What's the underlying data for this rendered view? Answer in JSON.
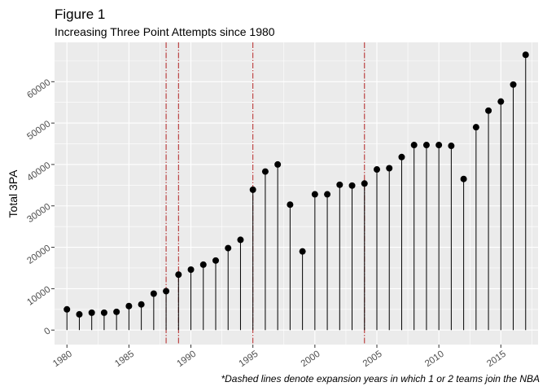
{
  "chart_data": {
    "type": "lollipop",
    "title": "Figure 1",
    "subtitle": "Increasing Three Point Attempts since 1980",
    "xlabel": "",
    "ylabel": "Total 3PA",
    "caption": "*Dashed lines denote expansion years in which 1 or 2 teams join the NBA",
    "x_ticks": [
      1980,
      1985,
      1990,
      1995,
      2000,
      2005,
      2010,
      2015
    ],
    "y_ticks": [
      0,
      10000,
      20000,
      30000,
      40000,
      50000,
      60000
    ],
    "xlim": [
      1979.0,
      2018.0
    ],
    "ylim": [
      -3500,
      69500
    ],
    "grid": true,
    "expansion_years": [
      1988,
      1989,
      1995,
      2004
    ],
    "colors": {
      "panel": "#ebebeb",
      "grid": "#ffffff",
      "point": "#000000",
      "vline": "#b22222"
    },
    "series": [
      {
        "x": [
          1980,
          1981,
          1982,
          1983,
          1984,
          1985,
          1986,
          1987,
          1988,
          1989,
          1990,
          1991,
          1992,
          1993,
          1994,
          1995,
          1996,
          1997,
          1998,
          1999,
          2000,
          2001,
          2002,
          2003,
          2004,
          2005,
          2006,
          2007,
          2008,
          2009,
          2010,
          2011,
          2012,
          2013,
          2014,
          2015,
          2016,
          2017
        ],
        "y": [
          5000,
          3800,
          4200,
          4200,
          4400,
          5800,
          6200,
          8800,
          9400,
          13400,
          14600,
          15800,
          16800,
          19800,
          21800,
          33900,
          38300,
          40000,
          30300,
          19000,
          32800,
          32800,
          35100,
          34900,
          35400,
          38800,
          39100,
          41800,
          44700,
          44700,
          44700,
          44500,
          36500,
          49000,
          53000,
          55200,
          59300,
          66500
        ]
      }
    ]
  }
}
